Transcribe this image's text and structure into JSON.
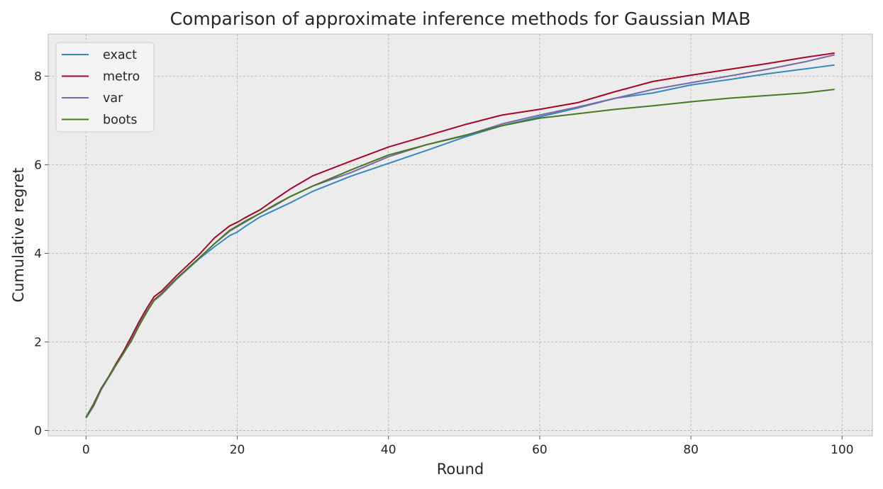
{
  "chart_data": {
    "type": "line",
    "title": "Comparison of approximate inference methods for Gaussian MAB",
    "xlabel": "Round",
    "ylabel": "Cumulative regret",
    "xlim": [
      -5,
      104
    ],
    "ylim": [
      -0.12,
      8.95
    ],
    "xticks": [
      0,
      20,
      40,
      60,
      80,
      100
    ],
    "yticks": [
      0,
      2,
      4,
      6,
      8
    ],
    "grid": true,
    "legend_position": "upper-left",
    "x_knots": [
      0,
      1,
      2,
      3,
      4,
      5,
      6,
      7,
      8,
      9,
      10,
      12,
      15,
      17,
      19,
      20,
      21,
      23,
      25,
      27,
      30,
      35,
      40,
      45,
      50,
      55,
      60,
      65,
      70,
      75,
      80,
      85,
      90,
      95,
      99
    ],
    "series": [
      {
        "name": "exact",
        "color": "#348ABD",
        "y_knots": [
          0.28,
          0.55,
          0.92,
          1.2,
          1.48,
          1.75,
          2.05,
          2.38,
          2.68,
          2.95,
          3.08,
          3.42,
          3.88,
          4.15,
          4.4,
          4.48,
          4.6,
          4.82,
          4.98,
          5.14,
          5.4,
          5.74,
          6.03,
          6.32,
          6.62,
          6.88,
          7.08,
          7.28,
          7.5,
          7.62,
          7.8,
          7.92,
          8.05,
          8.16,
          8.25
        ]
      },
      {
        "name": "metro",
        "color": "#A60628",
        "y_knots": [
          0.3,
          0.6,
          0.95,
          1.22,
          1.52,
          1.8,
          2.12,
          2.45,
          2.75,
          3.02,
          3.15,
          3.5,
          3.98,
          4.35,
          4.62,
          4.7,
          4.8,
          4.98,
          5.22,
          5.45,
          5.75,
          6.08,
          6.4,
          6.65,
          6.9,
          7.12,
          7.25,
          7.4,
          7.65,
          7.88,
          8.02,
          8.15,
          8.28,
          8.42,
          8.52
        ]
      },
      {
        "name": "var",
        "color": "#7A68A6",
        "y_knots": [
          0.29,
          0.56,
          0.93,
          1.2,
          1.49,
          1.76,
          2.05,
          2.38,
          2.67,
          2.93,
          3.07,
          3.42,
          3.9,
          4.22,
          4.5,
          4.6,
          4.7,
          4.9,
          5.08,
          5.28,
          5.52,
          5.82,
          6.18,
          6.45,
          6.65,
          6.92,
          7.12,
          7.3,
          7.5,
          7.7,
          7.85,
          8.0,
          8.15,
          8.32,
          8.48
        ]
      },
      {
        "name": "boots",
        "color": "#467821",
        "y_knots": [
          0.31,
          0.58,
          0.94,
          1.22,
          1.5,
          1.76,
          2.02,
          2.36,
          2.66,
          2.95,
          3.1,
          3.44,
          3.9,
          4.22,
          4.52,
          4.62,
          4.72,
          4.9,
          5.1,
          5.28,
          5.52,
          5.88,
          6.22,
          6.45,
          6.66,
          6.88,
          7.05,
          7.15,
          7.25,
          7.33,
          7.42,
          7.5,
          7.56,
          7.62,
          7.7
        ]
      }
    ]
  }
}
